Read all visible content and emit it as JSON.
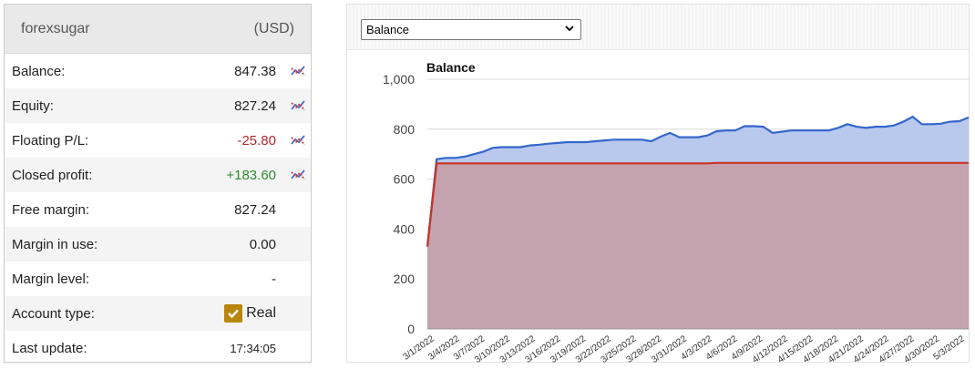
{
  "account": {
    "name": "forexsugar",
    "currency": "(USD)",
    "rows": [
      {
        "label": "Balance:",
        "value": "847.38",
        "chart_icon": true
      },
      {
        "label": "Equity:",
        "value": "827.24",
        "chart_icon": true
      },
      {
        "label": "Floating P/L:",
        "value": "-25.80",
        "chart_icon": true,
        "tone": "negative"
      },
      {
        "label": "Closed profit:",
        "value": "+183.60",
        "chart_icon": true,
        "tone": "positive"
      },
      {
        "label": "Free margin:",
        "value": "827.24"
      },
      {
        "label": "Margin in use:",
        "value": "0.00"
      },
      {
        "label": "Margin level:",
        "value": "-"
      },
      {
        "label": "Account type:",
        "value": "Real",
        "checkbox": true
      },
      {
        "label": "Last update:",
        "value": "17:34:05"
      }
    ]
  },
  "chart_selector": {
    "selected": "Balance"
  },
  "colors": {
    "balance_line": "#3366cc",
    "balance_fill": "#b9c9ee",
    "deposit_line": "#cc3322",
    "deposit_fill": "#c4a2ae",
    "chart_icon_blue": "#3b6fd8",
    "chart_icon_red": "#d0373a",
    "checkbox": "#b8860b"
  },
  "chart_data": {
    "type": "area",
    "title": "Balance",
    "ylim": [
      0,
      1000
    ],
    "yticks": [
      "1,000",
      "800",
      "600",
      "400",
      "200",
      "0"
    ],
    "ytick_values": [
      1000,
      800,
      600,
      400,
      200,
      0
    ],
    "grid": true,
    "x_labels": [
      "3/1/2022",
      "3/4/2022",
      "3/7/2022",
      "3/10/2022",
      "3/13/2022",
      "3/16/2022",
      "3/19/2022",
      "3/22/2022",
      "3/25/2022",
      "3/28/2022",
      "3/31/2022",
      "4/3/2022",
      "4/6/2022",
      "4/9/2022",
      "4/12/2022",
      "4/15/2022",
      "4/18/2022",
      "4/21/2022",
      "4/24/2022",
      "4/27/2022",
      "4/30/2022",
      "5/3/2022"
    ],
    "series": [
      {
        "key": "balance",
        "values": [
          330,
          680,
          685,
          685,
          690,
          700,
          710,
          725,
          728,
          728,
          728,
          735,
          738,
          742,
          745,
          748,
          748,
          748,
          752,
          755,
          758,
          758,
          758,
          758,
          752,
          770,
          785,
          768,
          768,
          768,
          775,
          792,
          795,
          795,
          812,
          812,
          810,
          785,
          790,
          795,
          795,
          795,
          795,
          795,
          805,
          820,
          810,
          805,
          810,
          810,
          815,
          830,
          850,
          820,
          820,
          822,
          830,
          832,
          847
        ]
      },
      {
        "key": "deposits",
        "values": [
          330,
          663,
          663,
          663,
          663,
          663,
          663,
          663,
          663,
          663,
          663,
          663,
          663,
          663,
          663,
          663,
          663,
          663,
          663,
          663,
          663,
          663,
          663,
          663,
          663,
          663,
          663,
          663,
          663,
          663,
          663,
          665,
          665,
          665,
          665,
          665,
          665,
          665,
          665,
          665,
          665,
          665,
          665,
          665,
          665,
          665,
          665,
          665,
          665,
          665,
          665,
          665,
          665,
          665,
          665,
          665,
          665,
          665,
          665
        ]
      }
    ]
  }
}
